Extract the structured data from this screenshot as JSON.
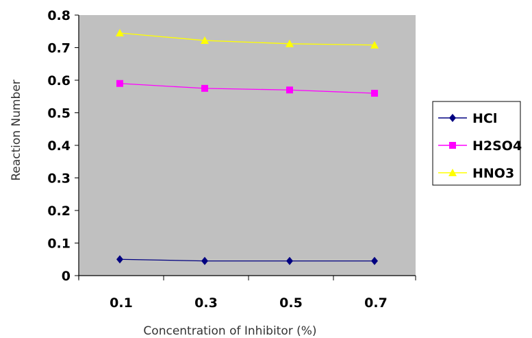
{
  "chart_data": {
    "type": "line",
    "title": "",
    "xlabel": "Concentration of Inhibitor (%)",
    "ylabel": "Reaction Number",
    "categories": [
      "0.1",
      "0.3",
      "0.5",
      "0.7"
    ],
    "ylim": [
      0,
      0.8
    ],
    "yticks": [
      "0",
      "0.1",
      "0.2",
      "0.3",
      "0.4",
      "0.5",
      "0.6",
      "0.7",
      "0.8"
    ],
    "grid": false,
    "legend": "right",
    "plot_background": "#c0c0c0",
    "series": [
      {
        "name": "HCl",
        "values": [
          0.05,
          0.045,
          0.045,
          0.045
        ],
        "color": "#000080",
        "marker": "diamond"
      },
      {
        "name": "H2SO4",
        "values": [
          0.59,
          0.575,
          0.57,
          0.56
        ],
        "color": "#ff00ff",
        "marker": "square"
      },
      {
        "name": "HNO3",
        "values": [
          0.745,
          0.722,
          0.712,
          0.708
        ],
        "color": "#ffff00",
        "marker": "triangle"
      }
    ]
  }
}
